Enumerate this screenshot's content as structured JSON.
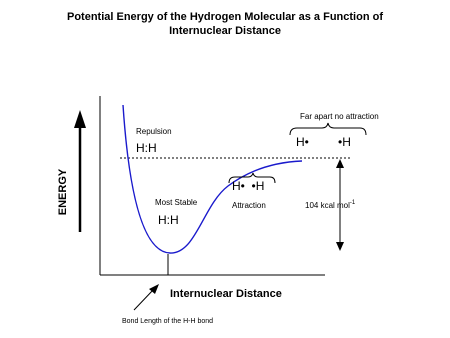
{
  "title": [
    "Potential Energy of the Hydrogen Molecular as a Function of",
    "Internuclear Distance"
  ],
  "y_axis_label": "ENERGY",
  "x_axis_label": "Internuclear Distance",
  "labels": {
    "repulsion": "Repulsion",
    "repulsion_molecule": "H:H",
    "far_apart": "Far apart no attraction",
    "far_atom_left": "H•",
    "far_atom_right": "•H",
    "attraction_atoms": "H•  •H",
    "attraction": "Attraction",
    "most_stable": "Most Stable",
    "stable_molecule": "H:H",
    "energy_gap": "104 kcal mol",
    "energy_gap_exponent": "-1",
    "bond_length": "Bond Length of the H-H bond"
  }
}
